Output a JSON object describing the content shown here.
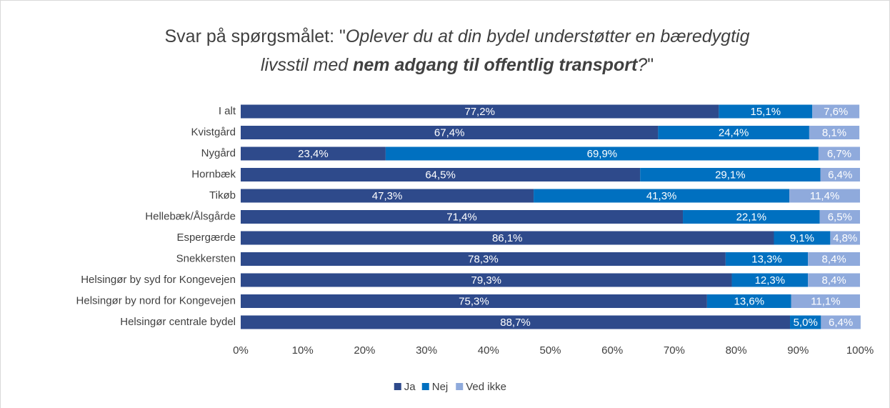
{
  "chart_data": {
    "type": "stacked_bar_horizontal",
    "title": [
      "Svar på spørgsmålet: \"",
      "Oplever du at din bydel understøtter en bæredygtig",
      "livsstil med ",
      "nem adgang til offentlig transport",
      "?",
      "\""
    ],
    "categories": [
      "I alt",
      "Kvistgård",
      "Nygård",
      "Hornbæk",
      "Tikøb",
      "Hellebæk/Ålsgårde",
      "Espergærde",
      "Snekkersten",
      "Helsingør by syd for Kongevejen",
      "Helsingør by nord for Kongevejen",
      "Helsingør centrale bydel"
    ],
    "series": [
      {
        "name": "Ja",
        "color": "#2e4a8b",
        "values": [
          77.2,
          67.4,
          23.4,
          64.5,
          47.3,
          71.4,
          86.1,
          78.3,
          79.3,
          75.3,
          88.7
        ],
        "value_labels": [
          "77,2%",
          "67,4%",
          "23,4%",
          "64,5%",
          "47,3%",
          "71,4%",
          "86,1%",
          "78,3%",
          "79,3%",
          "75,3%",
          "88,7%"
        ]
      },
      {
        "name": "Nej",
        "color": "#0070c0",
        "values": [
          15.1,
          24.4,
          69.9,
          29.1,
          41.3,
          22.1,
          9.1,
          13.3,
          12.3,
          13.6,
          5.0
        ],
        "value_labels": [
          "15,1%",
          "24,4%",
          "69,9%",
          "29,1%",
          "41,3%",
          "22,1%",
          "9,1%",
          "13,3%",
          "12,3%",
          "13,6%",
          "5,0%"
        ]
      },
      {
        "name": "Ved ikke",
        "color": "#8faadc",
        "values": [
          7.6,
          8.1,
          6.7,
          6.4,
          11.4,
          6.5,
          4.8,
          8.4,
          8.4,
          11.1,
          6.4
        ],
        "value_labels": [
          "7,6%",
          "8,1%",
          "6,7%",
          "6,4%",
          "11,4%",
          "6,5%",
          "4,8%",
          "8,4%",
          "8,4%",
          "11,1%",
          "6,4%"
        ]
      }
    ],
    "xlim": [
      0,
      100
    ],
    "xticks": [
      {
        "value": 0,
        "label": "0%"
      },
      {
        "value": 10,
        "label": "10%"
      },
      {
        "value": 20,
        "label": "20%"
      },
      {
        "value": 30,
        "label": "30%"
      },
      {
        "value": 40,
        "label": "40%"
      },
      {
        "value": 50,
        "label": "50%"
      },
      {
        "value": 60,
        "label": "60%"
      },
      {
        "value": 70,
        "label": "70%"
      },
      {
        "value": 80,
        "label": "80%"
      },
      {
        "value": 90,
        "label": "90%"
      },
      {
        "value": 100,
        "label": "100%"
      }
    ],
    "legend": "bottom"
  }
}
